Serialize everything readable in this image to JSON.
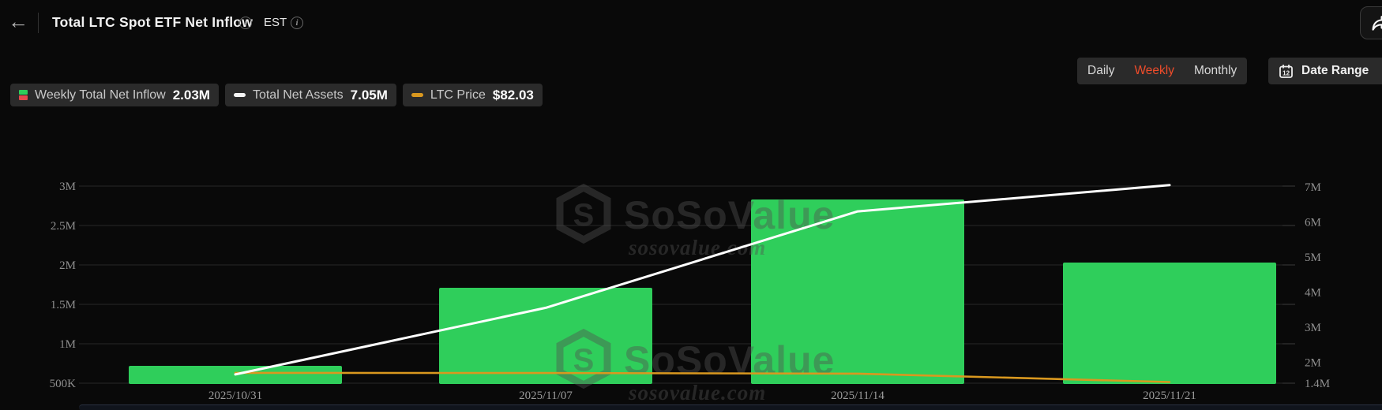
{
  "header": {
    "title": "Total LTC Spot ETF Net Inflow",
    "timezone": "EST",
    "back_icon": "←"
  },
  "toolbar": {
    "tabs": [
      {
        "label": "Daily",
        "active": false
      },
      {
        "label": "Weekly",
        "active": true
      },
      {
        "label": "Monthly",
        "active": false
      }
    ],
    "active_tab_color": "#f04c2a",
    "date_range_label": "Date Range",
    "calendar_day": "12"
  },
  "legend": [
    {
      "icon": "green-red-candle-icon",
      "label": "Weekly Total Net Inflow",
      "value": "2.03M"
    },
    {
      "icon": "white-dash-icon",
      "label": "Total Net Assets",
      "value": "7.05M"
    },
    {
      "icon": "orange-dash-icon",
      "label": "LTC Price",
      "value": "$82.03"
    }
  ],
  "watermark": {
    "brand": "SoSoValue",
    "url": "sosovalue.com",
    "logo": "S"
  },
  "chart_data": {
    "type": "bar",
    "categories": [
      "2025/10/31",
      "2025/11/07",
      "2025/11/14",
      "2025/11/21"
    ],
    "series": [
      {
        "name": "Weekly Total Net Inflow",
        "type": "bar",
        "axis": "left",
        "unit": "M",
        "color": "#2fce5b",
        "values": [
          0.72,
          1.71,
          2.83,
          2.03
        ]
      },
      {
        "name": "Total Net Assets",
        "type": "line",
        "axis": "right",
        "unit": "M",
        "color": "#ffffff",
        "values": [
          1.65,
          3.55,
          6.3,
          7.05
        ]
      },
      {
        "name": "LTC Price",
        "type": "line",
        "axis": "price-hidden",
        "unit": "$",
        "color": "#d9981f",
        "values": [
          86.6,
          86.5,
          86.2,
          82.03
        ]
      }
    ],
    "left_axis": {
      "ticks": [
        "3M",
        "2.5M",
        "2M",
        "1.5M",
        "1M",
        "500K"
      ],
      "min": 0.5,
      "max": 3.0
    },
    "right_axis": {
      "ticks": [
        "7M",
        "6M",
        "5M",
        "4M",
        "3M",
        "2M",
        "1.4M"
      ],
      "min": 1.4,
      "max": 7.0
    },
    "grid": true,
    "legend_position": "top-left"
  }
}
